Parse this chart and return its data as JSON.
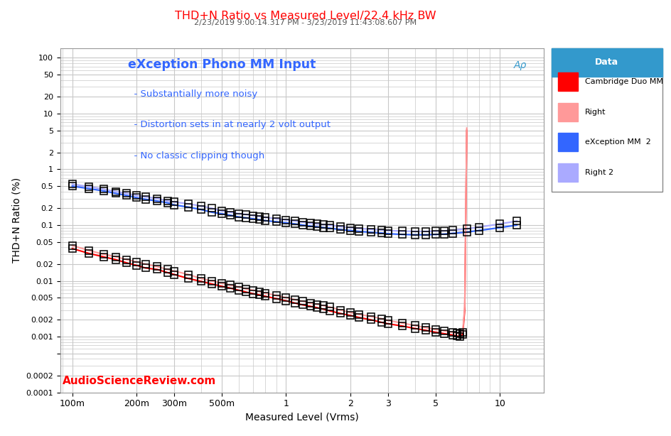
{
  "title": "THD+N Ratio vs Measured Level/22.4 kHz BW",
  "subtitle": "2/23/2019 9:00:14.317 PM - 3/23/2019 11:43:08.607 PM",
  "xlabel": "Measured Level (Vrms)",
  "ylabel": "THD+N Ratio (%)",
  "annotation_title": "eXception Phono MM Input",
  "annotation_lines": [
    "  - Substantially more noisy",
    "  - Distortion sets in at nearly 2 volt output",
    "  - No classic clipping though"
  ],
  "watermark": "AudioScienceReview.com",
  "title_color": "#FF0000",
  "subtitle_color": "#555555",
  "annotation_color": "#3366FF",
  "watermark_color": "#FF0000",
  "bg_color": "#FFFFFF",
  "plot_bg_color": "#FFFFFF",
  "grid_color": "#C8C8C8",
  "legend_header_bg": "#3399CC",
  "legend_header_color": "#FFFFFF",
  "xlim": [
    0.088,
    16
  ],
  "ylim": [
    0.0001,
    150
  ],
  "exc_left_x": [
    0.1,
    0.12,
    0.14,
    0.16,
    0.18,
    0.2,
    0.22,
    0.25,
    0.28,
    0.3,
    0.35,
    0.4,
    0.45,
    0.5,
    0.55,
    0.6,
    0.65,
    0.7,
    0.75,
    0.8,
    0.9,
    1.0,
    1.1,
    1.2,
    1.3,
    1.4,
    1.5,
    1.6,
    1.8,
    2.0,
    2.2,
    2.5,
    2.8,
    3.0,
    3.5,
    4.0,
    4.5,
    5.0,
    5.5,
    6.0,
    7.0,
    8.0,
    10.0,
    12.0
  ],
  "exc_left_y": [
    0.5,
    0.45,
    0.41,
    0.37,
    0.34,
    0.31,
    0.29,
    0.27,
    0.25,
    0.23,
    0.21,
    0.19,
    0.17,
    0.16,
    0.15,
    0.14,
    0.135,
    0.13,
    0.125,
    0.12,
    0.115,
    0.11,
    0.105,
    0.1,
    0.096,
    0.093,
    0.09,
    0.088,
    0.083,
    0.08,
    0.077,
    0.074,
    0.072,
    0.07,
    0.068,
    0.067,
    0.067,
    0.068,
    0.069,
    0.071,
    0.075,
    0.08,
    0.09,
    0.1
  ],
  "exc_right_x": [
    0.1,
    0.12,
    0.14,
    0.16,
    0.18,
    0.2,
    0.22,
    0.25,
    0.28,
    0.3,
    0.35,
    0.4,
    0.45,
    0.5,
    0.55,
    0.6,
    0.65,
    0.7,
    0.75,
    0.8,
    0.9,
    1.0,
    1.1,
    1.2,
    1.3,
    1.4,
    1.5,
    1.6,
    1.8,
    2.0,
    2.2,
    2.5,
    2.8,
    3.0,
    3.5,
    4.0,
    4.5,
    5.0,
    5.5,
    6.0,
    7.0,
    8.0,
    10.0,
    12.0
  ],
  "exc_right_y": [
    0.54,
    0.49,
    0.44,
    0.4,
    0.37,
    0.34,
    0.32,
    0.3,
    0.27,
    0.26,
    0.24,
    0.22,
    0.2,
    0.18,
    0.17,
    0.16,
    0.155,
    0.148,
    0.143,
    0.138,
    0.13,
    0.124,
    0.118,
    0.113,
    0.108,
    0.105,
    0.102,
    0.1,
    0.094,
    0.09,
    0.087,
    0.084,
    0.082,
    0.08,
    0.078,
    0.077,
    0.077,
    0.078,
    0.079,
    0.081,
    0.086,
    0.092,
    0.105,
    0.118
  ],
  "cam_left_x": [
    0.1,
    0.12,
    0.14,
    0.16,
    0.18,
    0.2,
    0.22,
    0.25,
    0.28,
    0.3,
    0.35,
    0.4,
    0.45,
    0.5,
    0.55,
    0.6,
    0.65,
    0.7,
    0.75,
    0.8,
    0.9,
    1.0,
    1.1,
    1.2,
    1.3,
    1.4,
    1.5,
    1.6,
    1.8,
    2.0,
    2.2,
    2.5,
    2.8,
    3.0,
    3.5,
    4.0,
    4.5,
    5.0,
    5.5,
    6.0,
    6.3,
    6.5,
    6.7,
    6.85,
    7.0
  ],
  "cam_left_y": [
    0.038,
    0.031,
    0.027,
    0.024,
    0.021,
    0.019,
    0.017,
    0.016,
    0.014,
    0.013,
    0.011,
    0.0098,
    0.0088,
    0.008,
    0.0074,
    0.0068,
    0.0063,
    0.0059,
    0.0056,
    0.0053,
    0.0048,
    0.0044,
    0.004,
    0.0037,
    0.0035,
    0.0033,
    0.0031,
    0.0029,
    0.0026,
    0.0024,
    0.0022,
    0.002,
    0.0018,
    0.0017,
    0.00155,
    0.0014,
    0.0013,
    0.0012,
    0.00113,
    0.00107,
    0.00103,
    0.001,
    0.0011,
    0.003,
    5.0
  ],
  "cam_right_x": [
    0.1,
    0.12,
    0.14,
    0.16,
    0.18,
    0.2,
    0.22,
    0.25,
    0.28,
    0.3,
    0.35,
    0.4,
    0.45,
    0.5,
    0.55,
    0.6,
    0.65,
    0.7,
    0.75,
    0.8,
    0.9,
    1.0,
    1.1,
    1.2,
    1.3,
    1.4,
    1.5,
    1.6,
    1.8,
    2.0,
    2.2,
    2.5,
    2.8,
    3.0,
    3.5,
    4.0,
    4.5,
    5.0,
    5.5,
    6.0,
    6.3,
    6.5,
    6.7,
    6.85,
    7.0
  ],
  "cam_right_y": [
    0.043,
    0.035,
    0.03,
    0.027,
    0.024,
    0.022,
    0.02,
    0.018,
    0.016,
    0.015,
    0.013,
    0.011,
    0.01,
    0.0091,
    0.0084,
    0.0078,
    0.0072,
    0.0068,
    0.0064,
    0.006,
    0.0055,
    0.005,
    0.0046,
    0.0043,
    0.004,
    0.0038,
    0.0036,
    0.0034,
    0.003,
    0.0027,
    0.0025,
    0.0023,
    0.0021,
    0.00195,
    0.00175,
    0.00158,
    0.00145,
    0.00135,
    0.00127,
    0.00119,
    0.00115,
    0.00112,
    0.0012,
    0.0035,
    5.5
  ],
  "colors": {
    "cam_left": "#FF0000",
    "cam_right": "#FF9999",
    "exc_left": "#3366FF",
    "exc_right": "#AAAAFF"
  },
  "legend_entries": [
    {
      "label": "Cambridge Duo MM",
      "color": "#FF0000"
    },
    {
      "label": "Right",
      "color": "#FF9999"
    },
    {
      "label": "eXception MM  2",
      "color": "#3366FF"
    },
    {
      "label": "Right 2",
      "color": "#AAAAFF"
    }
  ],
  "x_ticks": [
    0.1,
    0.2,
    0.3,
    0.5,
    1,
    2,
    3,
    5,
    10
  ],
  "x_labels": [
    "100m",
    "200m",
    "300m",
    "500m",
    "1",
    "2",
    "3",
    "5",
    "10"
  ],
  "y_major": [
    0.0001,
    0.0002,
    0.0005,
    0.001,
    0.002,
    0.005,
    0.01,
    0.02,
    0.05,
    0.1,
    0.2,
    0.5,
    1,
    2,
    5,
    10,
    20,
    50,
    100
  ],
  "y_labels": [
    "0.0001",
    "0.0002",
    "",
    "0.001",
    "0.002",
    "0.005",
    "0.01",
    "0.02",
    "0.05",
    "0.1",
    "0.2",
    "0.5",
    "1",
    "2",
    "5",
    "10",
    "20",
    "50",
    "100"
  ]
}
